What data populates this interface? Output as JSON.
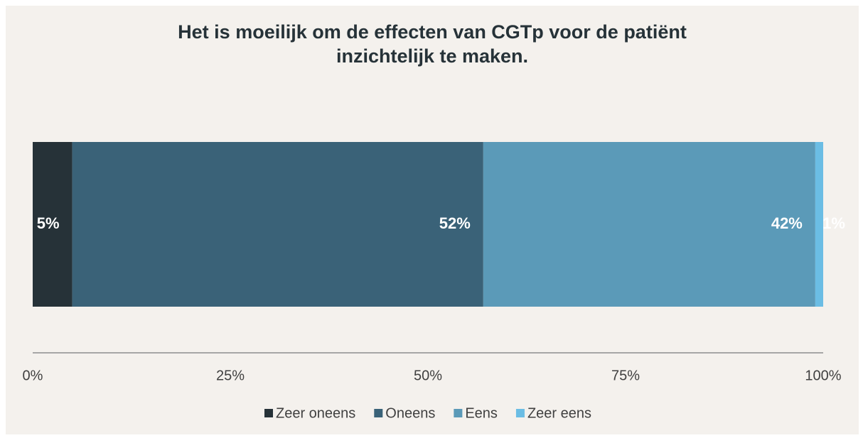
{
  "chart_data": {
    "type": "stacked-bar-horizontal",
    "title": "Het is moeilijk om de effecten van CGTp voor de patiënt\ninzichtelijk te maken.",
    "series": [
      {
        "name": "Zeer oneens",
        "color": "#263238",
        "values": [
          5
        ],
        "value_labels": [
          "5%"
        ]
      },
      {
        "name": "Oneens",
        "color": "#3a6278",
        "values": [
          52
        ],
        "value_labels": [
          "52%"
        ]
      },
      {
        "name": "Eens",
        "color": "#5b9ab8",
        "values": [
          42
        ],
        "value_labels": [
          "42%"
        ]
      },
      {
        "name": "Zeer eens",
        "color": "#6bbde4",
        "values": [
          1
        ],
        "value_labels": [
          "1%"
        ]
      }
    ],
    "xlim": [
      0,
      100
    ],
    "xticks": [
      {
        "value": 0,
        "label": "0%"
      },
      {
        "value": 25,
        "label": "25%"
      },
      {
        "value": 50,
        "label": "50%"
      },
      {
        "value": 75,
        "label": "75%"
      },
      {
        "value": 100,
        "label": "100%"
      }
    ],
    "legend": "bottom"
  }
}
